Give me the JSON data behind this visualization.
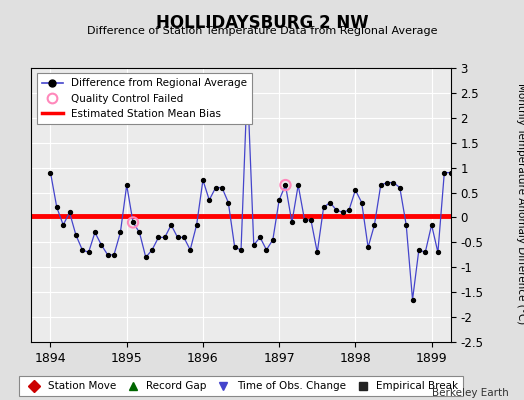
{
  "title": "HOLLIDAYSBURG 2 NW",
  "subtitle": "Difference of Station Temperature Data from Regional Average",
  "ylabel": "Monthly Temperature Anomaly Difference (°C)",
  "watermark": "Berkeley Earth",
  "bias_value": 0.03,
  "ylim": [
    -2.5,
    3.0
  ],
  "xlim": [
    1893.75,
    1899.25
  ],
  "xticks": [
    1894,
    1895,
    1896,
    1897,
    1898,
    1899
  ],
  "yticks": [
    -2.5,
    -2,
    -1.5,
    -1,
    -0.5,
    0,
    0.5,
    1,
    1.5,
    2,
    2.5,
    3
  ],
  "ytick_labels": [
    "-2.5",
    "-2",
    "-1.5",
    "-1",
    "-0.5",
    "0",
    "0.5",
    "1",
    "1.5",
    "2",
    "2.5",
    "3"
  ],
  "line_color": "#4444cc",
  "marker_color": "#000000",
  "bias_color": "#ff0000",
  "qc_marker_color": "#ff88bb",
  "bg_color": "#e0e0e0",
  "plot_bg_color": "#ebebeb",
  "x": [
    1894.0,
    1894.083,
    1894.167,
    1894.25,
    1894.333,
    1894.417,
    1894.5,
    1894.583,
    1894.667,
    1894.75,
    1894.833,
    1894.917,
    1895.0,
    1895.083,
    1895.167,
    1895.25,
    1895.333,
    1895.417,
    1895.5,
    1895.583,
    1895.667,
    1895.75,
    1895.833,
    1895.917,
    1896.0,
    1896.083,
    1896.167,
    1896.25,
    1896.333,
    1896.417,
    1896.5,
    1896.583,
    1896.667,
    1896.75,
    1896.833,
    1896.917,
    1897.0,
    1897.083,
    1897.167,
    1897.25,
    1897.333,
    1897.417,
    1897.5,
    1897.583,
    1897.667,
    1897.75,
    1897.833,
    1897.917,
    1898.0,
    1898.083,
    1898.167,
    1898.25,
    1898.333,
    1898.417,
    1898.5,
    1898.583,
    1898.667,
    1898.75,
    1898.833,
    1898.917,
    1899.0,
    1899.083,
    1899.167,
    1899.25
  ],
  "y": [
    0.9,
    0.2,
    -0.15,
    0.1,
    -0.35,
    -0.65,
    -0.7,
    -0.3,
    -0.55,
    -0.75,
    -0.75,
    -0.3,
    0.65,
    -0.1,
    -0.3,
    -0.8,
    -0.65,
    -0.4,
    -0.4,
    -0.15,
    -0.4,
    -0.4,
    -0.65,
    -0.15,
    0.75,
    0.35,
    0.6,
    0.6,
    0.3,
    -0.6,
    -0.65,
    2.7,
    -0.55,
    -0.4,
    -0.65,
    -0.45,
    0.35,
    0.65,
    -0.1,
    0.65,
    -0.05,
    -0.05,
    -0.7,
    0.2,
    0.3,
    0.15,
    0.1,
    0.15,
    0.55,
    0.3,
    -0.6,
    -0.15,
    0.65,
    0.7,
    0.7,
    0.6,
    -0.15,
    -1.65,
    -0.65,
    -0.7,
    -0.15,
    -0.7,
    0.9,
    0.9
  ],
  "qc_failed_indices": [
    13,
    37
  ],
  "legend_label_line": "Difference from Regional Average",
  "legend_label_qc": "Quality Control Failed",
  "legend_label_bias": "Estimated Station Mean Bias",
  "bottom_legend": [
    {
      "label": "Station Move",
      "marker": "D",
      "color": "#cc0000"
    },
    {
      "label": "Record Gap",
      "marker": "^",
      "color": "#006600"
    },
    {
      "label": "Time of Obs. Change",
      "marker": "v",
      "color": "#4444cc"
    },
    {
      "label": "Empirical Break",
      "marker": "s",
      "color": "#222222"
    }
  ]
}
